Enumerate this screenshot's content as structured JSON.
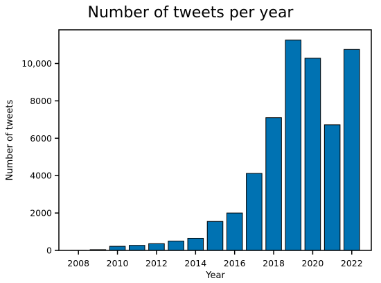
{
  "chart_data": {
    "type": "bar",
    "title": "Number of tweets per year",
    "xlabel": "Year",
    "ylabel": "Number of tweets",
    "x": [
      2008,
      2009,
      2010,
      2011,
      2012,
      2013,
      2014,
      2015,
      2016,
      2017,
      2018,
      2019,
      2020,
      2021,
      2022
    ],
    "values": [
      5,
      40,
      220,
      270,
      360,
      500,
      650,
      1550,
      2000,
      4120,
      7100,
      11250,
      10280,
      6720,
      10750
    ],
    "xticks": [
      2008,
      2010,
      2012,
      2014,
      2016,
      2018,
      2020,
      2022
    ],
    "xtick_labels": [
      "2008",
      "2010",
      "2012",
      "2014",
      "2016",
      "2018",
      "2020",
      "2022"
    ],
    "yticks": [
      0,
      2000,
      4000,
      6000,
      8000,
      10000
    ],
    "ytick_labels": [
      "0",
      "2000",
      "4000",
      "6000",
      "8000",
      "10,000"
    ],
    "xlim": [
      2007.0,
      2023.0
    ],
    "ylim": [
      0,
      11800
    ],
    "bar_color": "#0072B2",
    "grid": false,
    "legend": "none"
  }
}
